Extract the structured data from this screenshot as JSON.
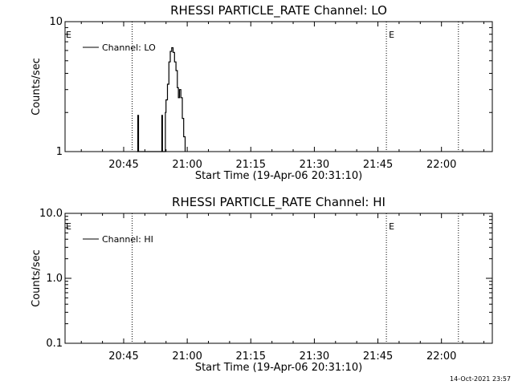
{
  "footer": {
    "timestamp": "14-Oct-2021 23:57"
  },
  "chart_data": [
    {
      "type": "line",
      "title": "RHESSI PARTICLE_RATE Channel: LO",
      "xlabel": "Start Time (19-Apr-06 20:31:10)",
      "ylabel": "Counts/sec",
      "y_scale": "log",
      "ylim": [
        1,
        10
      ],
      "y_ticks": [
        {
          "value": 1,
          "label": "1"
        },
        {
          "value": 10,
          "label": "10"
        }
      ],
      "x_range": [
        "20:31:10",
        "22:12:00"
      ],
      "x_ticks": [
        "20:45",
        "21:00",
        "21:15",
        "21:30",
        "21:45",
        "22:00"
      ],
      "grid": false,
      "legend_position": "top-left",
      "legend": [
        "Channel: LO"
      ],
      "vertical_markers": [
        {
          "time": "20:47:00",
          "label": ""
        },
        {
          "time": "21:47:00",
          "label": "E"
        },
        {
          "time": "22:04:00",
          "label": ""
        }
      ],
      "corner_label": "E",
      "series": [
        {
          "name": "Channel: LO",
          "points": [
            [
              "20:48:10",
              1.0
            ],
            [
              "20:48:20",
              1.9
            ],
            [
              "20:48:30",
              1.0
            ],
            [
              "20:53:50",
              1.0
            ],
            [
              "20:54:00",
              1.9
            ],
            [
              "20:54:10",
              1.0
            ],
            [
              "20:54:40",
              1.0
            ],
            [
              "20:54:50",
              2.0
            ],
            [
              "20:55:00",
              2.5
            ],
            [
              "20:55:20",
              3.3
            ],
            [
              "20:55:40",
              4.9
            ],
            [
              "20:56:00",
              5.9
            ],
            [
              "20:56:20",
              6.3
            ],
            [
              "20:56:40",
              5.8
            ],
            [
              "20:57:00",
              4.9
            ],
            [
              "20:57:20",
              4.2
            ],
            [
              "20:57:40",
              3.1
            ],
            [
              "20:57:55",
              2.6
            ],
            [
              "20:58:10",
              3.0
            ],
            [
              "20:58:30",
              2.6
            ],
            [
              "20:58:50",
              1.8
            ],
            [
              "20:59:10",
              1.3
            ],
            [
              "20:59:30",
              1.0
            ]
          ]
        }
      ]
    },
    {
      "type": "line",
      "title": "RHESSI PARTICLE_RATE Channel: HI",
      "xlabel": "Start Time (19-Apr-06 20:31:10)",
      "ylabel": "Counts/sec",
      "y_scale": "log",
      "ylim": [
        0.1,
        10
      ],
      "y_ticks": [
        {
          "value": 0.1,
          "label": "0.1"
        },
        {
          "value": 1,
          "label": "1.0"
        },
        {
          "value": 10,
          "label": "10.0"
        }
      ],
      "x_range": [
        "20:31:10",
        "22:12:00"
      ],
      "x_ticks": [
        "20:45",
        "21:00",
        "21:15",
        "21:30",
        "21:45",
        "22:00"
      ],
      "grid": false,
      "legend_position": "top-left",
      "legend": [
        "Channel: HI"
      ],
      "vertical_markers": [
        {
          "time": "20:47:00",
          "label": ""
        },
        {
          "time": "21:47:00",
          "label": "E"
        },
        {
          "time": "22:04:00",
          "label": ""
        }
      ],
      "corner_label": "E",
      "series": [
        {
          "name": "Channel: HI",
          "points": []
        }
      ]
    }
  ]
}
